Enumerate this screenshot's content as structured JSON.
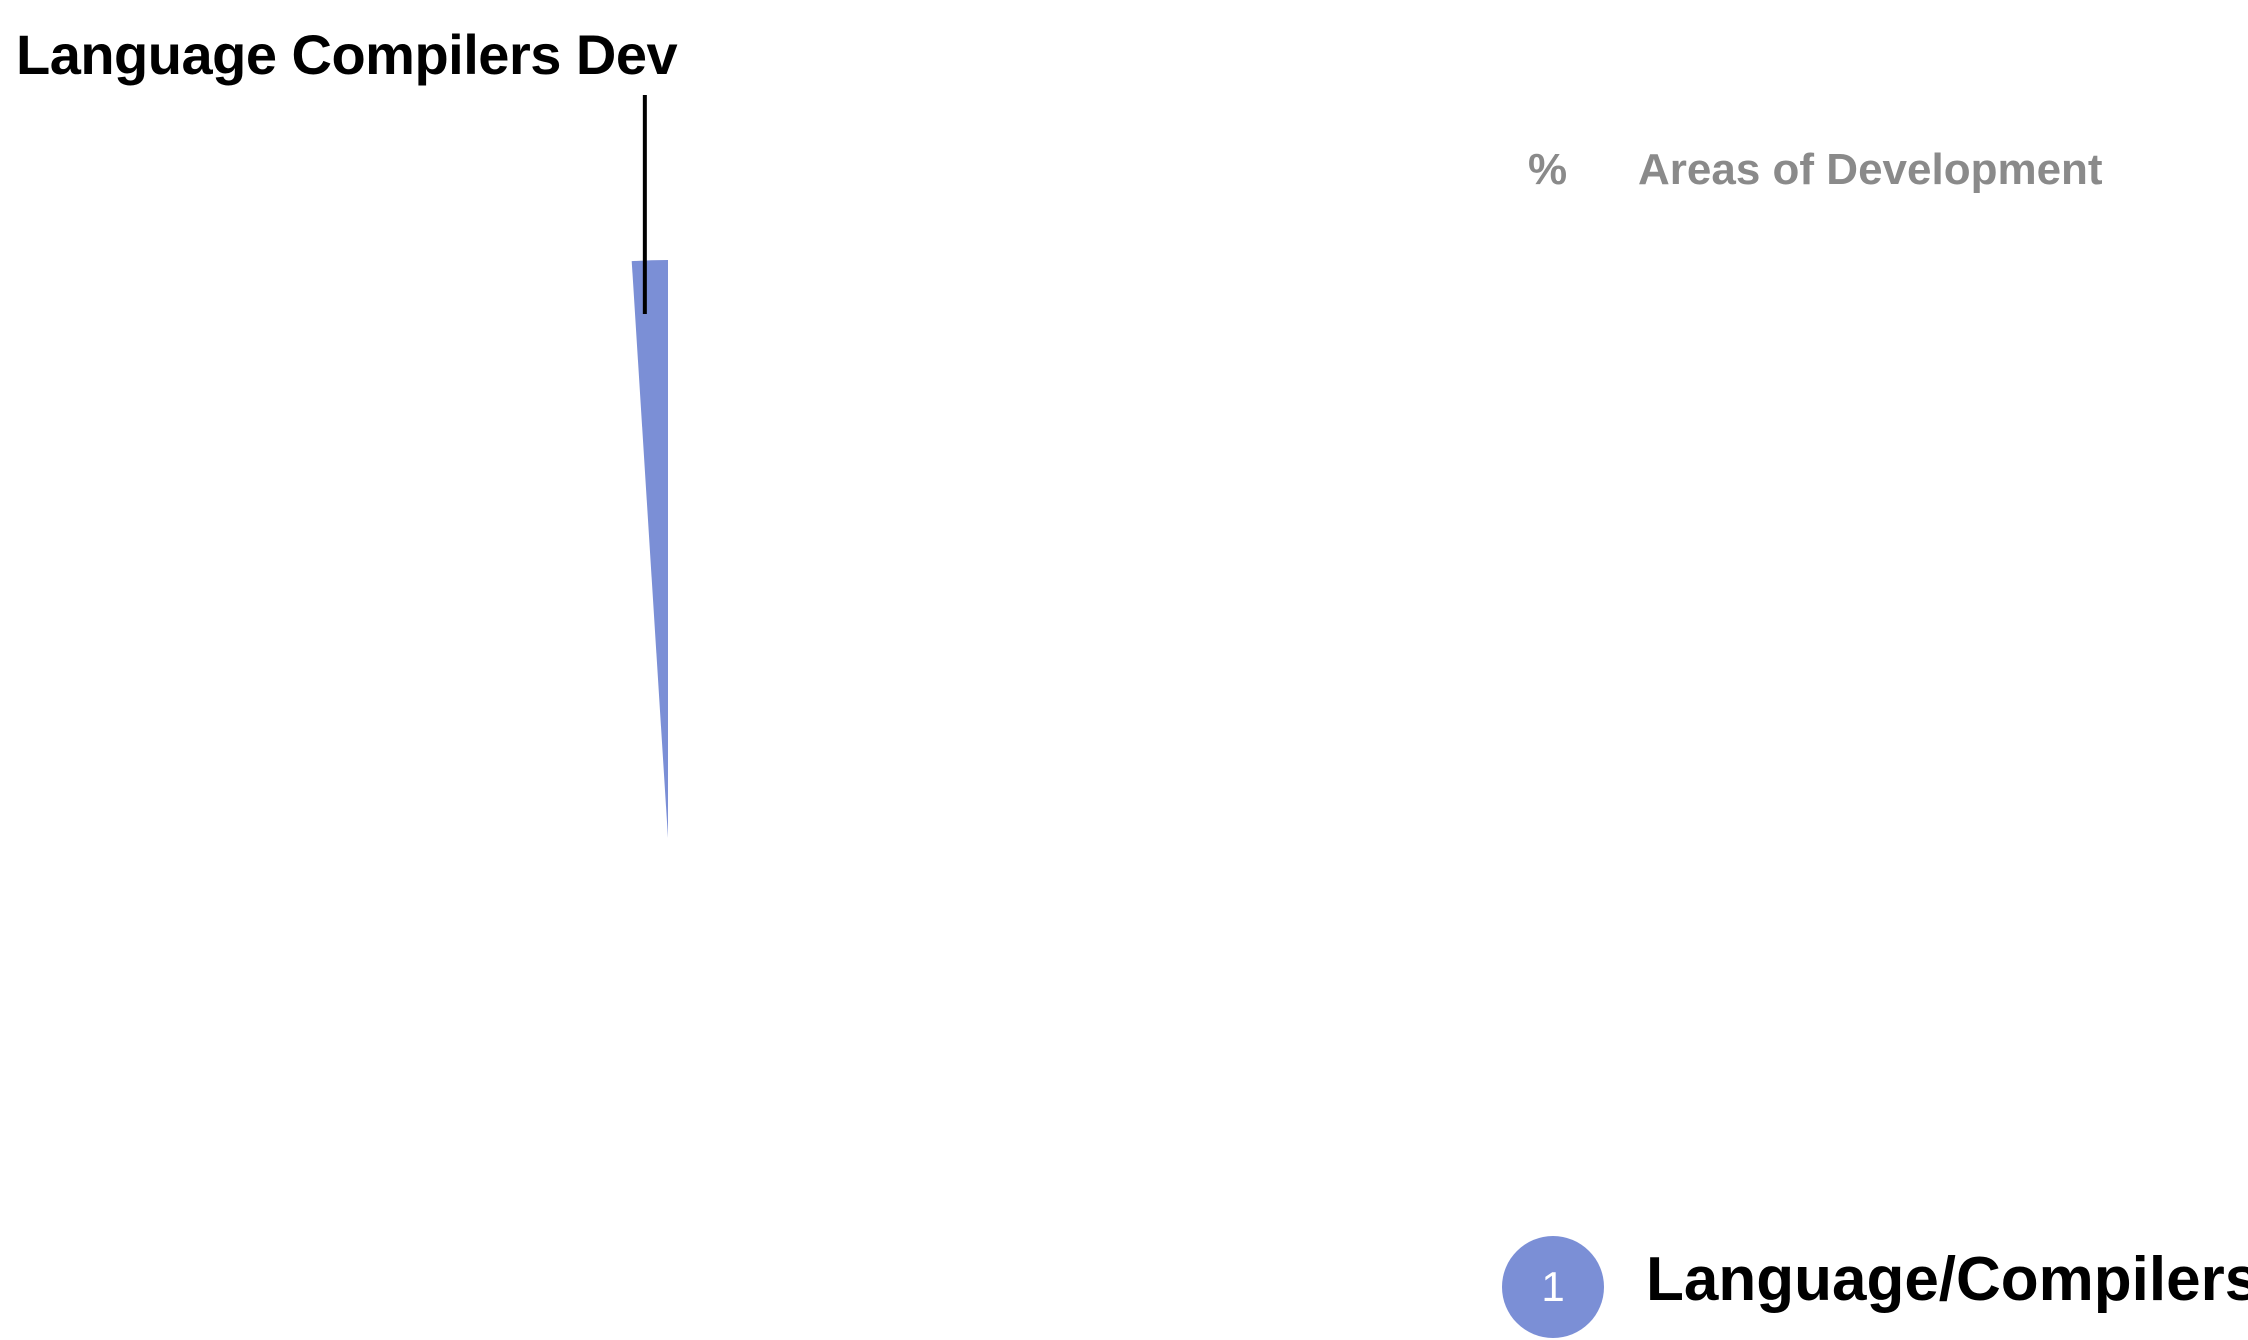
{
  "chart_data": {
    "type": "pie",
    "title": "",
    "legend_header": {
      "pct_label": "%",
      "title": "Areas of Development"
    },
    "slices": [
      {
        "rank": "1",
        "label": "Language/Compilers",
        "callout": "Language Compilers Dev",
        "value_pct": 1,
        "color": "#7b8fd6"
      }
    ],
    "legend_placement": "right"
  }
}
